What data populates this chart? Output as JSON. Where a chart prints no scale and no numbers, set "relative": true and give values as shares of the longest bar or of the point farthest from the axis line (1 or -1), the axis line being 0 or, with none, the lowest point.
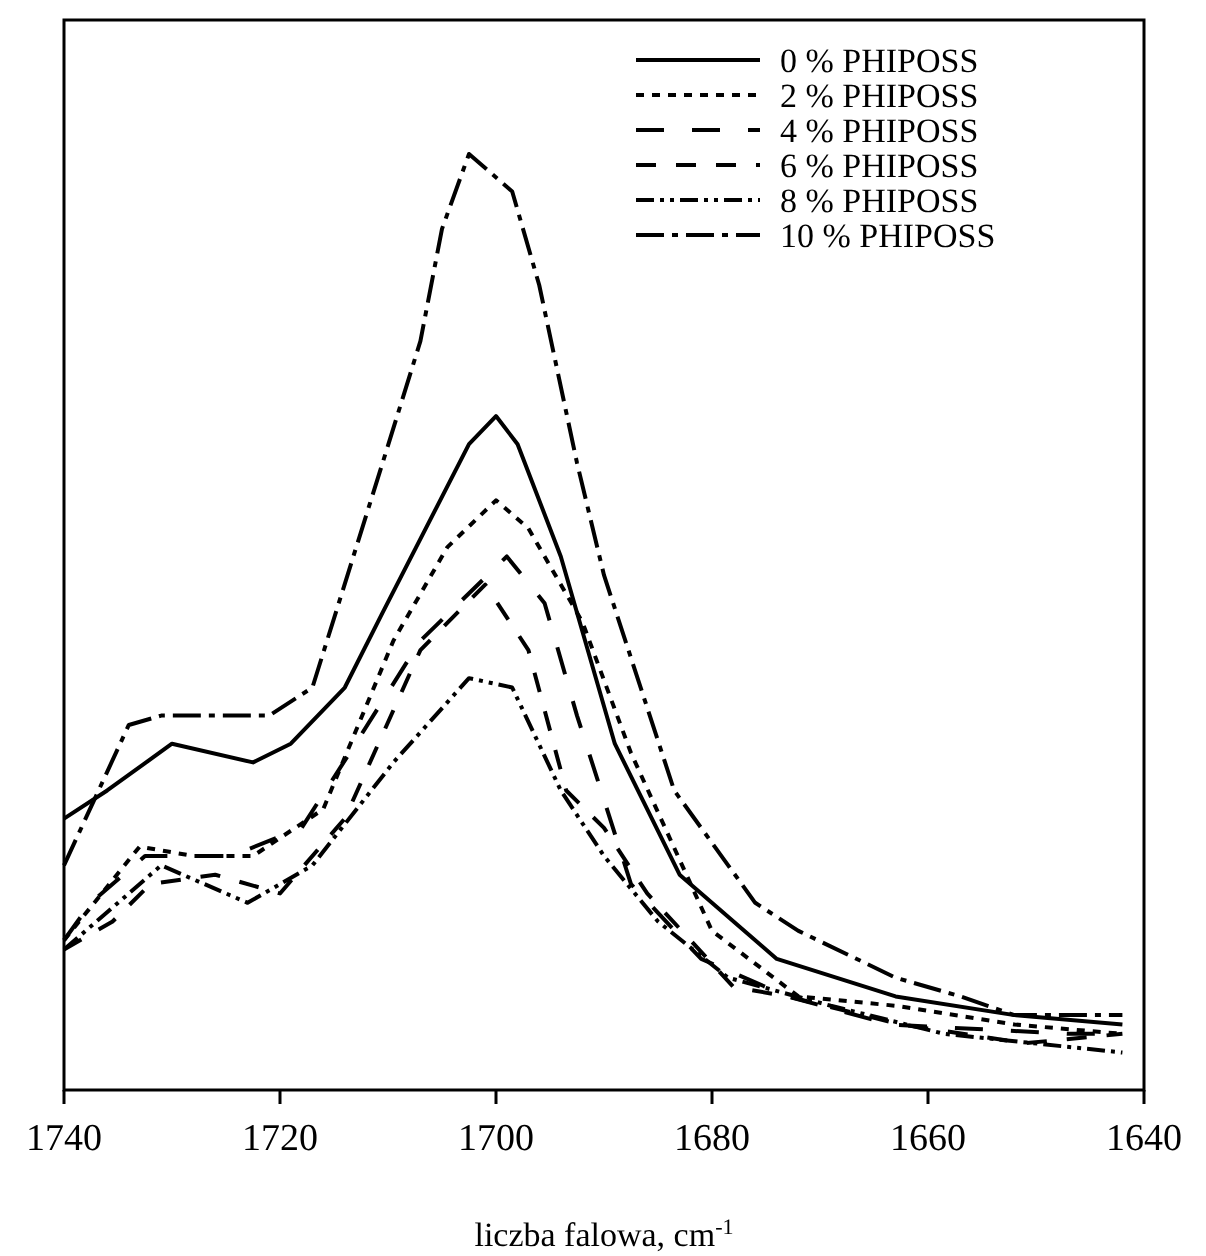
{
  "chart_data": {
    "type": "line",
    "relative": true,
    "xlabel": "liczba falowa, cm$^{-1}$",
    "xlim": [
      1740,
      1640
    ],
    "xticks": [
      1740,
      1720,
      1700,
      1680,
      1660,
      1640
    ],
    "legend": "top right",
    "series": [
      {
        "name": "0 % PHIPOSS",
        "color": "#000000",
        "line_style": "solid",
        "x": [
          1740,
          1736,
          1730,
          1722.5,
          1719,
          1714,
          1710.5,
          1702.5,
          1700,
          1698,
          1694,
          1689,
          1683,
          1674,
          1663,
          1652,
          1642
        ],
        "values": [
          0.29,
          0.32,
          0.37,
          0.35,
          0.37,
          0.43,
          0.51,
          0.69,
          0.72,
          0.69,
          0.57,
          0.37,
          0.23,
          0.14,
          0.1,
          0.08,
          0.07
        ]
      },
      {
        "name": "2 % PHIPOSS",
        "color": "#000000",
        "line_style": "dotted",
        "x": [
          1740,
          1733,
          1728,
          1722.5,
          1716,
          1709.5,
          1704.5,
          1700,
          1697,
          1692,
          1687.5,
          1680,
          1672,
          1663,
          1652,
          1642
        ],
        "values": [
          0.16,
          0.26,
          0.25,
          0.25,
          0.3,
          0.48,
          0.58,
          0.63,
          0.6,
          0.5,
          0.36,
          0.17,
          0.1,
          0.09,
          0.07,
          0.06
        ]
      },
      {
        "name": "4 % PHIPOSS",
        "color": "#000000",
        "line_style": "dashed",
        "x": [
          1740,
          1737.5,
          1732.5,
          1724.5,
          1718,
          1713,
          1707,
          1699,
          1695.5,
          1692.5,
          1687.5,
          1681,
          1673,
          1663.5,
          1647,
          1642
        ],
        "values": [
          0.16,
          0.2,
          0.25,
          0.25,
          0.28,
          0.37,
          0.48,
          0.57,
          0.52,
          0.4,
          0.22,
          0.14,
          0.1,
          0.07,
          0.06,
          0.06
        ]
      },
      {
        "name": "6 % PHIPOSS",
        "color": "#000000",
        "line_style": "dashed",
        "x": [
          1740,
          1735.5,
          1732,
          1726,
          1720,
          1714,
          1707,
          1701,
          1697,
          1693.5,
          1690,
          1686,
          1678,
          1673,
          1662.5,
          1651,
          1642
        ],
        "values": [
          0.15,
          0.18,
          0.22,
          0.23,
          0.21,
          0.29,
          0.47,
          0.54,
          0.47,
          0.32,
          0.28,
          0.21,
          0.11,
          0.1,
          0.07,
          0.05,
          0.06
        ]
      },
      {
        "name": "8 % PHIPOSS",
        "color": "#000000",
        "line_style": "dashed",
        "x": [
          1740,
          1731,
          1723,
          1717,
          1709.5,
          1702.5,
          1698.5,
          1694,
          1690,
          1685,
          1678.5,
          1669,
          1658.5,
          1642
        ],
        "values": [
          0.15,
          0.24,
          0.2,
          0.24,
          0.35,
          0.44,
          0.43,
          0.32,
          0.25,
          0.18,
          0.12,
          0.09,
          0.06,
          0.04
        ]
      },
      {
        "name": "10 % PHIPOSS",
        "color": "#000000",
        "line_style": "dashed",
        "x": [
          1740,
          1734,
          1731,
          1729,
          1721,
          1717,
          1710.5,
          1707,
          1705,
          1702.5,
          1698.5,
          1696,
          1692.5,
          1690,
          1683.5,
          1676,
          1672,
          1663,
          1657,
          1652,
          1642
        ],
        "values": [
          0.24,
          0.39,
          0.4,
          0.4,
          0.4,
          0.43,
          0.67,
          0.8,
          0.92,
          1.0,
          0.96,
          0.86,
          0.67,
          0.55,
          0.32,
          0.2,
          0.17,
          0.12,
          0.1,
          0.08,
          0.08
        ]
      }
    ]
  }
}
